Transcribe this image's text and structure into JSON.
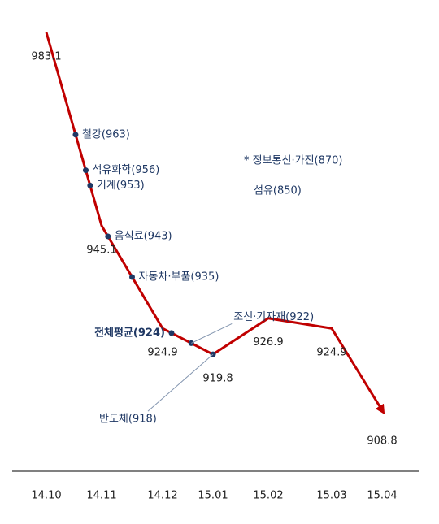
{
  "chart_data": {
    "type": "line",
    "categories": [
      "14.10",
      "14.11",
      "14.12",
      "15.01",
      "15.02",
      "15.03",
      "15.04"
    ],
    "values": [
      983.1,
      945.1,
      924.9,
      919.8,
      926.9,
      924.9,
      908.8
    ],
    "color": "#c00000",
    "marker_color": "#1f3864",
    "annotations": [
      {
        "label": "철강(963)",
        "value": 963
      },
      {
        "label": "석유화학(956)",
        "value": 956
      },
      {
        "label": "기계(953)",
        "value": 953
      },
      {
        "label": "음식료(943)",
        "value": 943
      },
      {
        "label": "자동차·부품(935)",
        "value": 935
      },
      {
        "label": "전체평균(924)",
        "value": 924
      },
      {
        "label": "조선·기자재(922)",
        "value": 922
      },
      {
        "label": "반도체(918)",
        "value": 918
      }
    ],
    "notes": [
      "* 정보통신·가전(870)",
      "섬유(850)"
    ]
  }
}
